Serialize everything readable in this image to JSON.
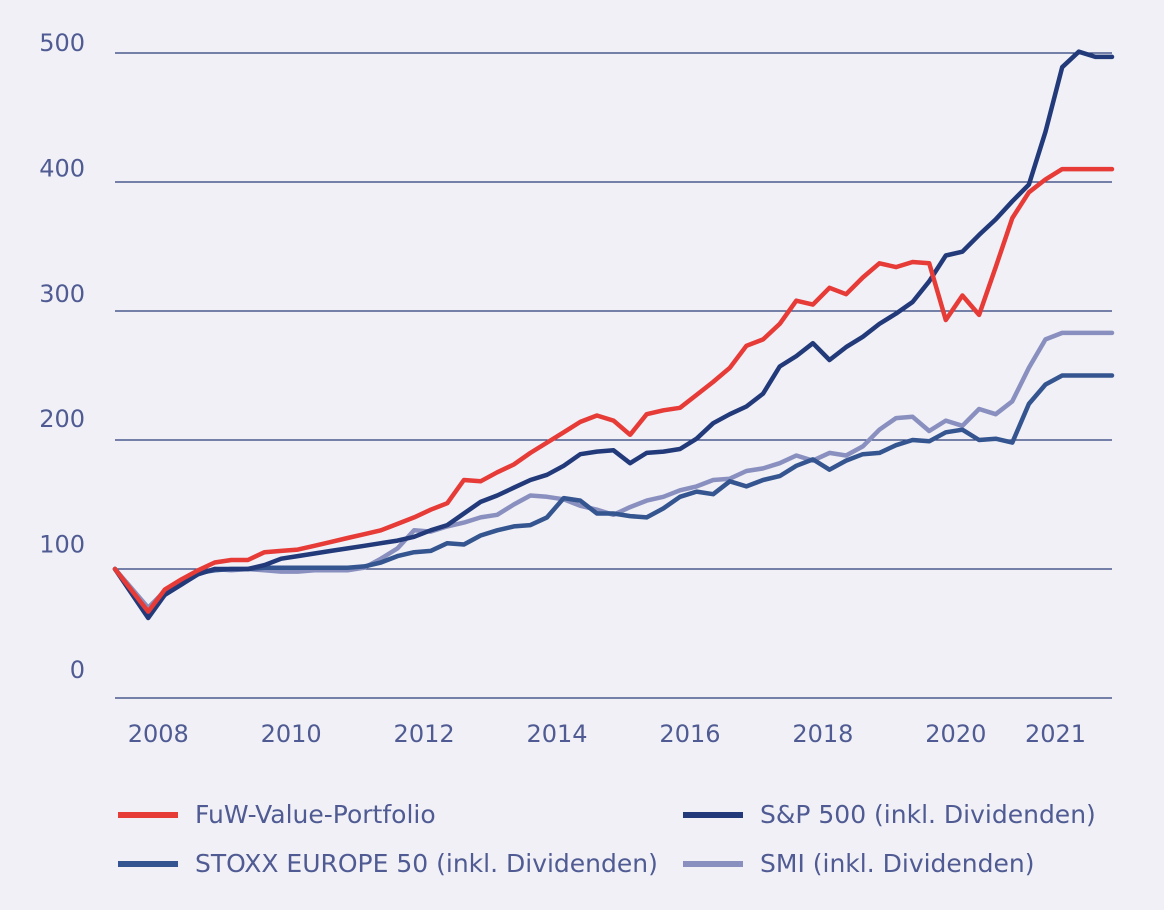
{
  "chart_data": {
    "type": "line",
    "title": "",
    "xlabel": "",
    "ylabel": "",
    "ylim": [
      0,
      500
    ],
    "xlim": [
      2007.5,
      2022.5
    ],
    "grid": true,
    "yticks": [
      0,
      100,
      200,
      300,
      400,
      500
    ],
    "y_tick_labels": [
      "0",
      "100",
      "200",
      "300",
      "400",
      "500"
    ],
    "xticks": [
      {
        "label": "2008",
        "x": 2008
      },
      {
        "label": "2010",
        "x": 2010
      },
      {
        "label": "2012",
        "x": 2012
      },
      {
        "label": "2014",
        "x": 2014
      },
      {
        "label": "2016",
        "x": 2016
      },
      {
        "label": "2018",
        "x": 2018
      },
      {
        "label": "2020",
        "x": 2020
      },
      {
        "label": "2021",
        "x": 2021.5
      }
    ],
    "x": [
      2007.5,
      2008.0,
      2008.25,
      2008.5,
      2008.75,
      2009.0,
      2009.25,
      2009.5,
      2009.75,
      2010.0,
      2010.25,
      2010.5,
      2010.75,
      2011.0,
      2011.25,
      2011.5,
      2011.75,
      2012.0,
      2012.25,
      2012.5,
      2012.75,
      2013.0,
      2013.25,
      2013.5,
      2013.75,
      2014.0,
      2014.25,
      2014.5,
      2014.75,
      2015.0,
      2015.25,
      2015.5,
      2015.75,
      2016.0,
      2016.25,
      2016.5,
      2016.75,
      2017.0,
      2017.25,
      2017.5,
      2017.75,
      2018.0,
      2018.25,
      2018.5,
      2018.75,
      2019.0,
      2019.25,
      2019.5,
      2019.75,
      2020.0,
      2020.25,
      2020.5,
      2020.75,
      2021.0,
      2021.25,
      2021.5,
      2021.75,
      2022.0,
      2022.25,
      2022.5
    ],
    "series": [
      {
        "name": "FuW-Value-Portfolio",
        "color": "#e63b37",
        "values": [
          100,
          67,
          84,
          92,
          99,
          105,
          107,
          107,
          113,
          114,
          115,
          118,
          121,
          124,
          127,
          130,
          135,
          140,
          146,
          151,
          169,
          168,
          175,
          181,
          190,
          198,
          206,
          214,
          219,
          215,
          204,
          220,
          223,
          225,
          235,
          245,
          256,
          273,
          278,
          290,
          308,
          305,
          318,
          313,
          326,
          337,
          334,
          338,
          337,
          293,
          312,
          297,
          334,
          372,
          392,
          402,
          410,
          410,
          410,
          410
        ]
      },
      {
        "name": "S&P 500 (inkl. Dividenden)",
        "color": "#223a7a",
        "values": [
          100,
          62,
          80,
          88,
          96,
          100,
          100,
          100,
          103,
          108,
          110,
          112,
          114,
          116,
          118,
          120,
          122,
          125,
          130,
          134,
          143,
          152,
          157,
          163,
          169,
          173,
          180,
          189,
          191,
          192,
          182,
          190,
          191,
          193,
          201,
          213,
          220,
          226,
          236,
          257,
          265,
          275,
          262,
          272,
          280,
          290,
          298,
          307,
          323,
          343,
          346,
          359,
          371,
          385,
          398,
          439,
          489,
          501,
          497,
          497
        ]
      },
      {
        "name": "STOXX EUROPE 50 (inkl. Dividenden)",
        "color": "#34558f",
        "values": [
          100,
          65,
          80,
          88,
          97,
          99,
          100,
          100,
          101,
          101,
          101,
          101,
          101,
          101,
          102,
          105,
          110,
          113,
          114,
          120,
          119,
          126,
          130,
          133,
          134,
          140,
          155,
          153,
          143,
          143,
          141,
          140,
          147,
          156,
          160,
          158,
          168,
          164,
          169,
          172,
          180,
          185,
          177,
          184,
          189,
          190,
          196,
          200,
          199,
          206,
          208,
          200,
          201,
          198,
          228,
          243,
          250,
          250,
          250,
          250
        ]
      },
      {
        "name": "SMI (inkl. Dividenden)",
        "color": "#8990bf",
        "values": [
          100,
          70,
          83,
          90,
          96,
          100,
          99,
          100,
          99,
          98,
          98,
          99,
          99,
          99,
          101,
          108,
          116,
          130,
          129,
          133,
          136,
          140,
          142,
          150,
          157,
          156,
          154,
          149,
          146,
          142,
          148,
          153,
          156,
          161,
          164,
          169,
          170,
          176,
          178,
          182,
          188,
          184,
          190,
          188,
          195,
          208,
          217,
          218,
          207,
          215,
          211,
          224,
          220,
          230,
          256,
          278,
          283,
          283,
          283,
          283
        ]
      }
    ]
  },
  "legend": [
    {
      "label": "FuW-Value-Portfolio",
      "color": "#e63b37"
    },
    {
      "label": "S&P 500 (inkl. Dividenden)",
      "color": "#223a7a"
    },
    {
      "label": "STOXX EUROPE 50 (inkl. Dividenden)",
      "color": "#34558f"
    },
    {
      "label": "SMI (inkl. Dividenden)",
      "color": "#8990bf"
    }
  ]
}
